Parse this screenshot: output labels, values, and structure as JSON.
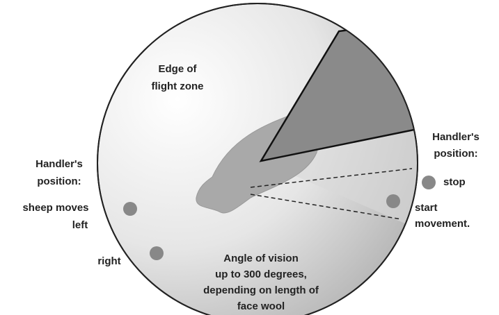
{
  "flight_zone_label": [
    "Edge of",
    "flight zone"
  ],
  "handler_right": [
    "Handler's",
    "position:"
  ],
  "handler_left": [
    "Handler's",
    "position:"
  ],
  "stop": "stop",
  "start_movement": [
    "start",
    "movement."
  ],
  "sheep_moves": [
    "sheep moves",
    "left"
  ],
  "right": "right",
  "vision_note": [
    "Angle of vision",
    "up to 300 degrees,",
    "depending on length of",
    "face wool"
  ]
}
